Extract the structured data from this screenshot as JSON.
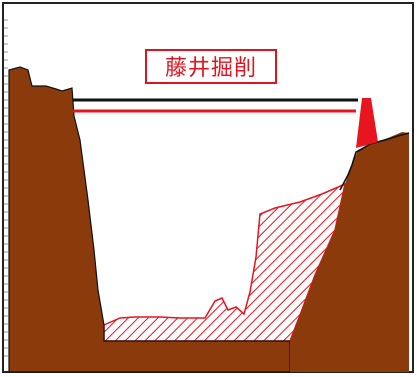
{
  "diagram": {
    "caption": "藤井掘削",
    "colors": {
      "terrain": "#8b3a0c",
      "excavation": "#e8141e",
      "line_upper": "#111111",
      "line_lower": "#e8141e",
      "frame": "#222222"
    }
  }
}
